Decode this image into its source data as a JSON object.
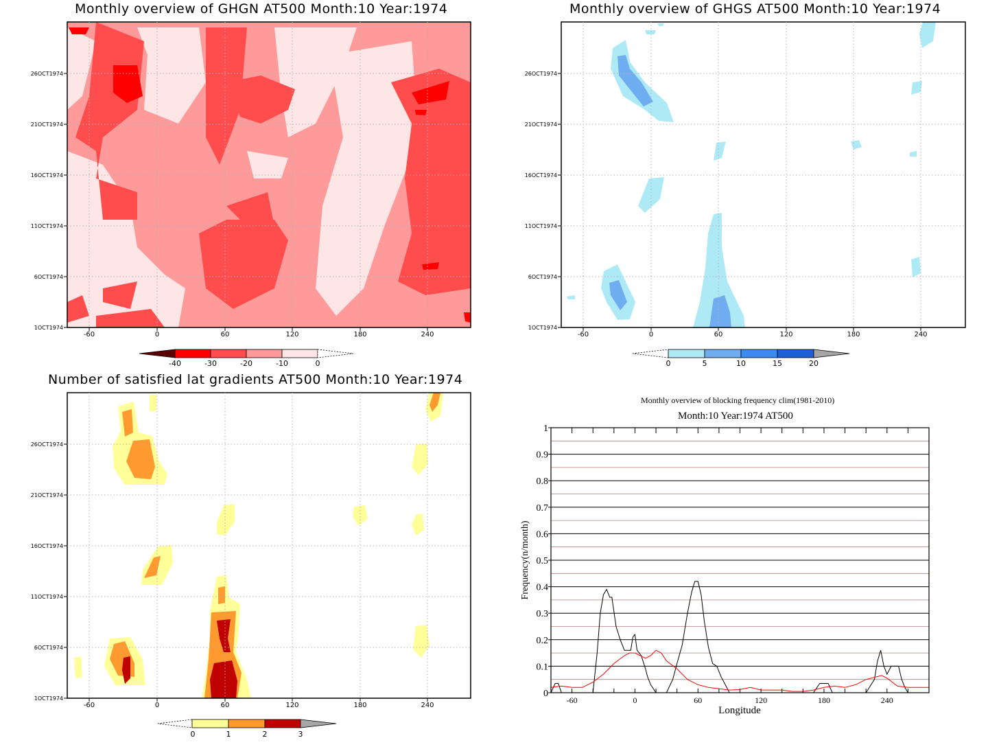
{
  "panels": {
    "ghgn": {
      "title": "Monthly overview of GHGN AT500 Month:10 Year:1974",
      "x_ticks": [
        "-60",
        "0",
        "60",
        "120",
        "180",
        "240"
      ],
      "y_ticks": [
        "1OCT1974",
        "6OCT1974",
        "11OCT1974",
        "16OCT1974",
        "21OCT1974",
        "26OCT1974"
      ],
      "colorbar": {
        "labels": [
          "-40",
          "-30",
          "-20",
          "-10",
          "0"
        ],
        "colors": [
          "#5a0000",
          "#ff0000",
          "#ff4d4d",
          "#ff9a9a",
          "#ffe6e6"
        ]
      }
    },
    "ghgs": {
      "title": "Monthly overview of GHGS AT500 Month:10 Year:1974",
      "x_ticks": [
        "-60",
        "0",
        "60",
        "120",
        "180",
        "240"
      ],
      "y_ticks": [
        "1OCT1974",
        "6OCT1974",
        "11OCT1974",
        "16OCT1974",
        "21OCT1974",
        "26OCT1974"
      ],
      "colorbar": {
        "labels": [
          "0",
          "5",
          "10",
          "15",
          "20"
        ],
        "colors": [
          "#aeeaf6",
          "#6fadf0",
          "#3c8cf0",
          "#1d60d6",
          "#a6a6a6"
        ]
      }
    },
    "grad": {
      "title": "Number of satisfied lat gradients AT500 Month:10 Year:1974",
      "x_ticks": [
        "-60",
        "0",
        "60",
        "120",
        "180",
        "240"
      ],
      "y_ticks": [
        "1OCT1974",
        "6OCT1974",
        "11OCT1974",
        "16OCT1974",
        "21OCT1974",
        "26OCT1974"
      ],
      "colorbar": {
        "labels": [
          "0",
          "1",
          "2",
          "3"
        ],
        "colors": [
          "#ffff9a",
          "#ff9a30",
          "#c00000",
          "#a6a6a6"
        ]
      }
    }
  },
  "chart_data": {
    "type": "line",
    "title": "Monthly overview of blocking frequency clim(1981-2010)",
    "subtitle": "Month:10 Year:1974  AT500",
    "xlabel": "Longitude",
    "ylabel": "Frequency(n/month)",
    "xlim": [
      -80,
      280
    ],
    "ylim": [
      0,
      1
    ],
    "x_ticks": [
      -60,
      0,
      60,
      120,
      180,
      240
    ],
    "y_ticks": [
      0,
      0.1,
      0.2,
      0.3,
      0.4,
      0.5,
      0.6,
      0.7,
      0.8,
      0.9,
      1
    ],
    "grid": true,
    "series": [
      {
        "color": "#000000",
        "x": [
          -80,
          -76,
          -73,
          -70,
          -67,
          -60,
          -40,
          -36,
          -33,
          -30,
          -27,
          -24,
          -22,
          -18,
          -14,
          -10,
          -6,
          -4,
          -2,
          0,
          2,
          6,
          10,
          12,
          15,
          20,
          30,
          36,
          40,
          45,
          50,
          54,
          57,
          60,
          63,
          66,
          70,
          74,
          78,
          82,
          86,
          90,
          100,
          110,
          120,
          140,
          160,
          170,
          176,
          180,
          184,
          188,
          200,
          220,
          228,
          231,
          234,
          237,
          240,
          244,
          248,
          251,
          254,
          257,
          260,
          280
        ],
        "y": [
          0,
          0.035,
          0.035,
          0,
          0,
          0,
          0,
          0.15,
          0.3,
          0.37,
          0.39,
          0.36,
          0.36,
          0.25,
          0.2,
          0.16,
          0.16,
          0.16,
          0.21,
          0.22,
          0.16,
          0.14,
          0.09,
          0.06,
          0.03,
          0,
          0,
          0.05,
          0.11,
          0.18,
          0.3,
          0.38,
          0.42,
          0.42,
          0.37,
          0.27,
          0.17,
          0.11,
          0.1,
          0.06,
          0.03,
          0,
          0,
          0,
          0,
          0,
          0,
          0,
          0.035,
          0.035,
          0.035,
          0,
          0,
          0,
          0.05,
          0.12,
          0.16,
          0.1,
          0.07,
          0.1,
          0.1,
          0.1,
          0.05,
          0.02,
          0,
          0
        ]
      },
      {
        "color": "#ff0000",
        "x": [
          -80,
          -70,
          -60,
          -50,
          -40,
          -30,
          -20,
          -10,
          -5,
          0,
          5,
          10,
          15,
          20,
          25,
          30,
          40,
          50,
          60,
          70,
          80,
          90,
          100,
          110,
          120,
          130,
          140,
          150,
          160,
          170,
          180,
          190,
          200,
          210,
          220,
          230,
          235,
          240,
          250,
          260,
          270,
          280
        ],
        "y": [
          0.02,
          0.025,
          0.02,
          0.02,
          0.04,
          0.07,
          0.11,
          0.14,
          0.15,
          0.15,
          0.14,
          0.13,
          0.14,
          0.16,
          0.15,
          0.12,
          0.09,
          0.05,
          0.03,
          0.02,
          0.015,
          0.01,
          0.012,
          0.02,
          0.01,
          0.01,
          0.01,
          0.005,
          0.005,
          0.01,
          0.02,
          0.025,
          0.02,
          0.03,
          0.05,
          0.06,
          0.065,
          0.055,
          0.025,
          0.02,
          0.02,
          0.02
        ]
      }
    ]
  }
}
